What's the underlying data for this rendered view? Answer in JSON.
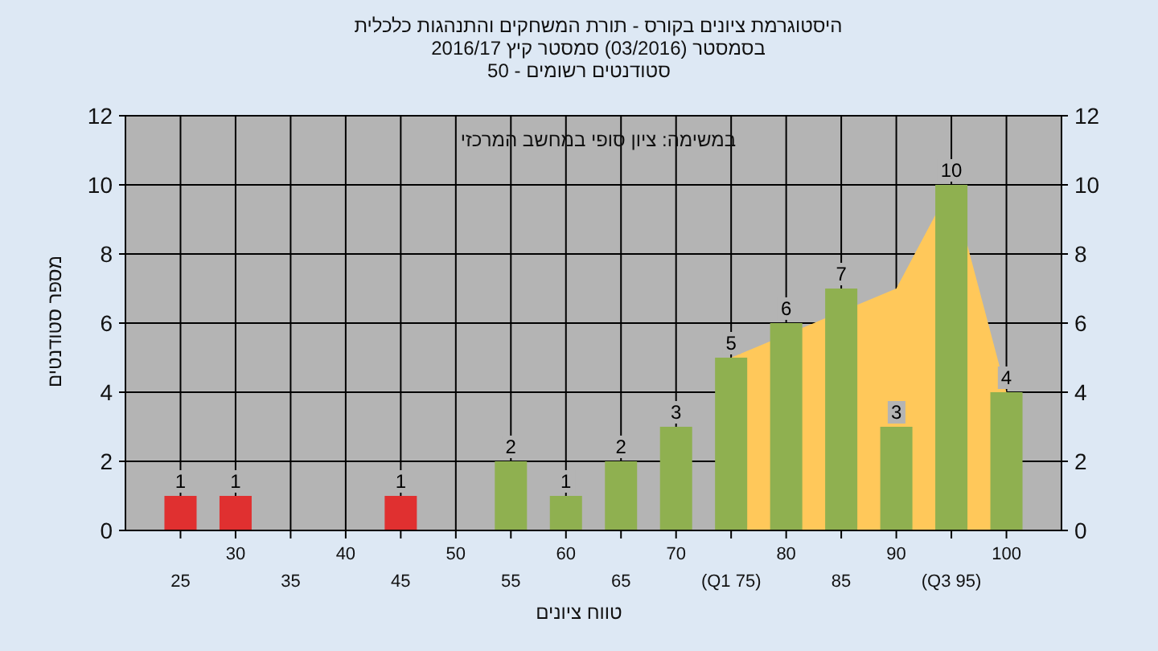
{
  "chart_data": {
    "type": "bar",
    "title": "היסטוגרמת ציונים בקורס - תורת המשחקים והתנהגות כלכלית",
    "subtitle": "בסמסטר (03/2016) סמסטר קיץ 2016/17",
    "annotations": [
      "סטודנטים רשומים - 50",
      "במשימה: ציון סופי במחשב המרכזי"
    ],
    "xlabel": "טווח ציונים",
    "ylabel": "מספר סטודנטים",
    "categories": [
      "25",
      "30",
      "35",
      "40",
      "45",
      "50",
      "55",
      "60",
      "65",
      "70",
      "(Q1 75)",
      "80",
      "85",
      "90",
      "(Q3 95)",
      "100"
    ],
    "series": [
      {
        "type": "area",
        "color": "#ffc85a",
        "values": [
          null,
          null,
          null,
          null,
          null,
          null,
          null,
          null,
          null,
          null,
          5,
          null,
          null,
          7,
          10,
          4
        ]
      },
      {
        "colors": [
          "#e03030",
          "#e03030",
          "#e03030",
          "#e03030",
          "#e03030",
          "#8fb050",
          "#8fb050",
          "#8fb050",
          "#8fb050",
          "#8fb050",
          "#8fb050",
          "#8fb050",
          "#8fb050",
          "#8fb050",
          "#8fb050",
          "#8fb050"
        ],
        "values": [
          1,
          1,
          0,
          0,
          1,
          0,
          2,
          1,
          2,
          3,
          5,
          6,
          7,
          3,
          10,
          4
        ],
        "value_labels": [
          "1",
          "1",
          null,
          null,
          "1",
          null,
          "2",
          "1",
          "2",
          "3",
          "5",
          "6",
          "7",
          "3",
          "10",
          "4"
        ]
      }
    ],
    "ylim": [
      0,
      12
    ],
    "yticks": [
      0,
      2,
      4,
      6,
      8,
      10,
      12
    ],
    "y2lim": [
      0,
      12
    ],
    "y2ticks": [
      0,
      2,
      4,
      6,
      8,
      10,
      12
    ],
    "grid": true
  }
}
